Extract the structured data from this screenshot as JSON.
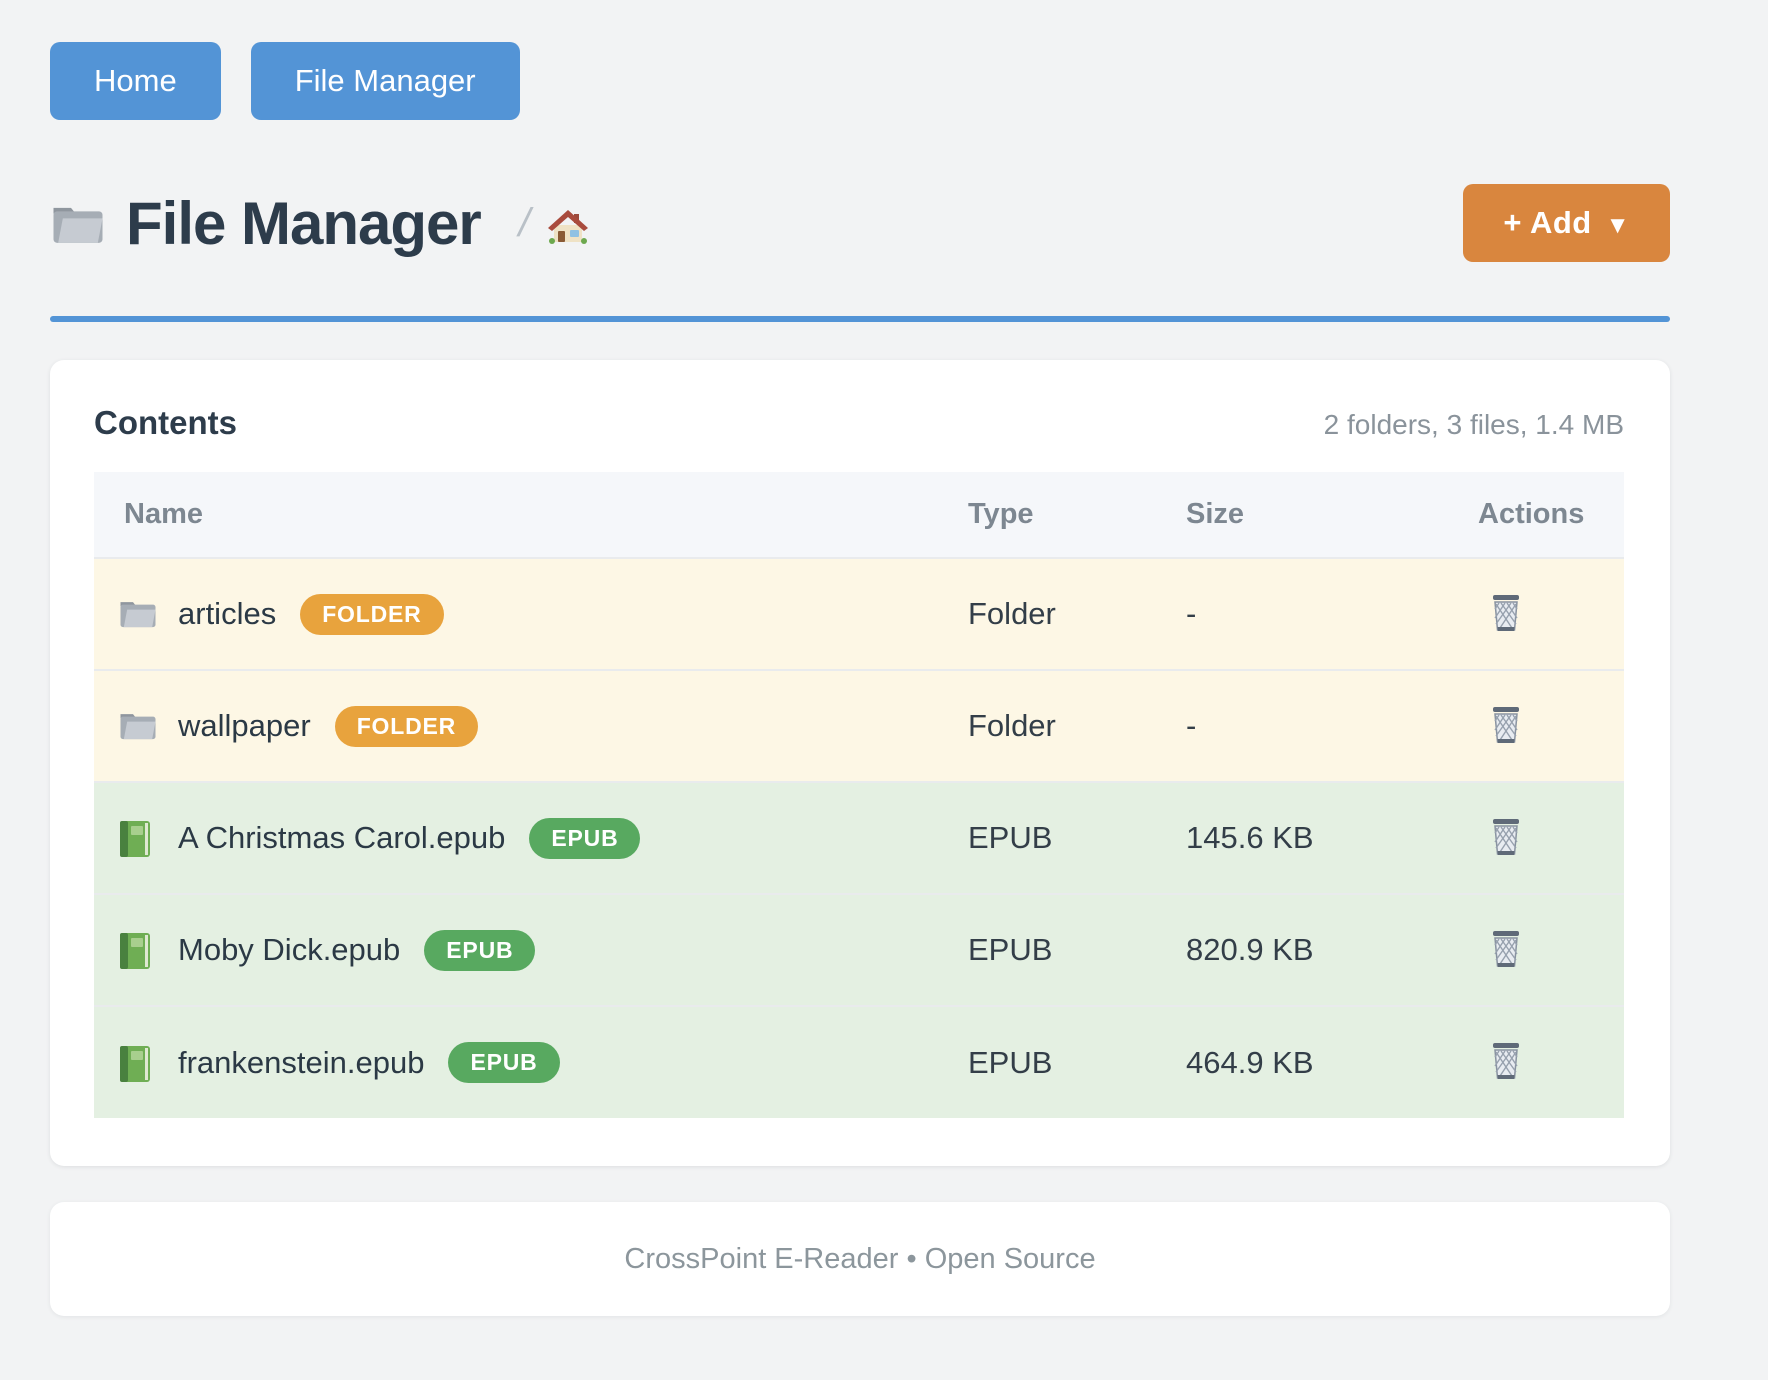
{
  "nav": {
    "buttons": [
      {
        "label": "Home"
      },
      {
        "label": "File Manager"
      }
    ]
  },
  "header": {
    "title": "File Manager",
    "title_icon": "folder-icon",
    "breadcrumb_separator": "/",
    "breadcrumb_home_icon": "home-icon",
    "add_button_label": "+ Add",
    "add_button_caret": "▼"
  },
  "panel": {
    "title": "Contents",
    "summary": "2 folders, 3 files, 1.4 MB",
    "table": {
      "columns": [
        "Name",
        "Type",
        "Size",
        "Actions"
      ],
      "rows": [
        {
          "name": "articles",
          "kind": "folder",
          "badge": "FOLDER",
          "type": "Folder",
          "size": "-",
          "action_icon": "trash-icon"
        },
        {
          "name": "wallpaper",
          "kind": "folder",
          "badge": "FOLDER",
          "type": "Folder",
          "size": "-",
          "action_icon": "trash-icon"
        },
        {
          "name": "A Christmas Carol.epub",
          "kind": "epub",
          "badge": "EPUB",
          "type": "EPUB",
          "size": "145.6 KB",
          "action_icon": "trash-icon"
        },
        {
          "name": "Moby Dick.epub",
          "kind": "epub",
          "badge": "EPUB",
          "type": "EPUB",
          "size": "820.9 KB",
          "action_icon": "trash-icon"
        },
        {
          "name": "frankenstein.epub",
          "kind": "epub",
          "badge": "EPUB",
          "type": "EPUB",
          "size": "464.9 KB",
          "action_icon": "trash-icon"
        }
      ]
    }
  },
  "footer": {
    "text": "CrossPoint E-Reader • Open Source"
  },
  "colors": {
    "page-bg": "#f2f3f4",
    "card-bg": "#ffffff",
    "accent-blue": "#5394d6",
    "accent-orange": "#d9863e",
    "badge-folder": "#e8a33d",
    "badge-epub": "#58a960",
    "row-folder-bg": "#fdf7e5",
    "row-epub-bg": "#e4f0e2",
    "header-row-bg": "#f5f7fa",
    "text-dark": "#2d3c4b",
    "text-muted": "#8a939b"
  }
}
